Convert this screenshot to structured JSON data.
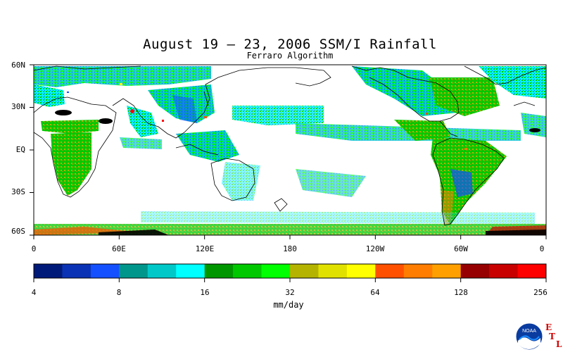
{
  "title": "August 19 – 23, 2006 SSM/I Rainfall",
  "subtitle": "Ferraro Algorithm",
  "map": {
    "lat_labels": [
      "60N",
      "30N",
      "EQ",
      "30S",
      "60S"
    ],
    "lon_labels": [
      "0",
      "60E",
      "120E",
      "180",
      "120W",
      "60W",
      "0"
    ],
    "land_color": "#ffffff",
    "ocean_color": "#ffffff"
  },
  "colorbar": {
    "colors": [
      "#001a7a",
      "#0a32b4",
      "#1450ff",
      "#00968c",
      "#00c8c8",
      "#00ffff",
      "#009600",
      "#00c800",
      "#00ff00",
      "#b4b400",
      "#e1e100",
      "#ffff00",
      "#ff5000",
      "#ff7d00",
      "#ffa000",
      "#960000",
      "#c80000",
      "#ff0000"
    ],
    "tick_labels": [
      "4",
      "8",
      "16",
      "32",
      "64",
      "128",
      "256"
    ],
    "unit": "mm/day"
  },
  "logo": {
    "text": "NOAA",
    "letters": [
      "E",
      "T",
      "L"
    ]
  }
}
